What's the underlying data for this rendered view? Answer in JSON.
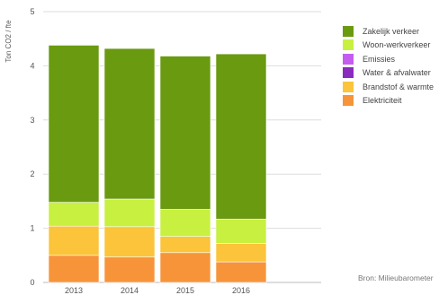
{
  "chart_data": {
    "type": "bar",
    "stacked": true,
    "ylabel": "Ton CO2 / fte",
    "ylim": [
      0,
      5
    ],
    "yticks": [
      0,
      1,
      2,
      3,
      4,
      5
    ],
    "grid": true,
    "legend_position": "right",
    "categories": [
      "2013",
      "2014",
      "2015",
      "2016"
    ],
    "series": [
      {
        "name": "Elektriciteit",
        "color": "#f7943a",
        "values": [
          0.5,
          0.47,
          0.55,
          0.38
        ]
      },
      {
        "name": "Brandstof & warmte",
        "color": "#fbc43a",
        "values": [
          0.54,
          0.56,
          0.3,
          0.34
        ]
      },
      {
        "name": "Water & afvalwater",
        "color": "#8a2bbf",
        "values": [
          0,
          0,
          0,
          0
        ]
      },
      {
        "name": "Emissies",
        "color": "#c45cf0",
        "values": [
          0,
          0,
          0,
          0
        ]
      },
      {
        "name": "Woon-werkverkeer",
        "color": "#c8f040",
        "values": [
          0.44,
          0.51,
          0.5,
          0.45
        ]
      },
      {
        "name": "Zakelijk verkeer",
        "color": "#6a9a10",
        "values": [
          2.9,
          2.78,
          2.83,
          3.05
        ]
      }
    ],
    "source": "Bron: Milieubarometer"
  }
}
